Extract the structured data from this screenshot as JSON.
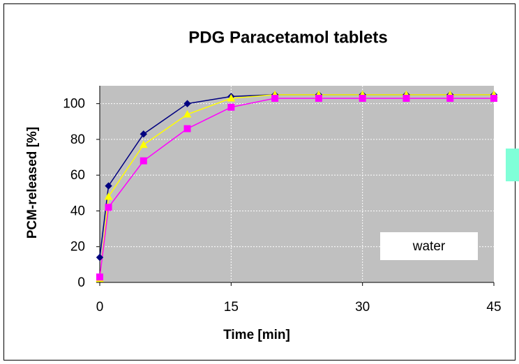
{
  "chart_data": {
    "type": "line",
    "title": "PDG Paracetamol tablets",
    "x_label": "Time [min]",
    "y_label": "PCM-released [%]",
    "annotation": "water",
    "x": [
      0,
      1,
      5,
      10,
      15,
      20,
      25,
      30,
      35,
      40,
      45
    ],
    "series": [
      {
        "color": "#000080",
        "marker": "diamond",
        "values": [
          14,
          54,
          83,
          100,
          104,
          105,
          105,
          105,
          105,
          105,
          105
        ]
      },
      {
        "color": "#ffff00",
        "marker": "triangle",
        "values": [
          2,
          48,
          77,
          94,
          103,
          105,
          105,
          105,
          105,
          105,
          105
        ]
      },
      {
        "color": "#ff00ff",
        "marker": "square",
        "values": [
          3,
          42,
          68,
          86,
          98,
          103,
          103,
          103,
          103,
          103,
          103
        ]
      }
    ],
    "xlim": [
      0,
      45
    ],
    "xticks": [
      0,
      15,
      30,
      45
    ],
    "ylim": [
      0,
      110
    ],
    "yticks": [
      0,
      20,
      40,
      60,
      80,
      100
    ],
    "grid": true
  }
}
